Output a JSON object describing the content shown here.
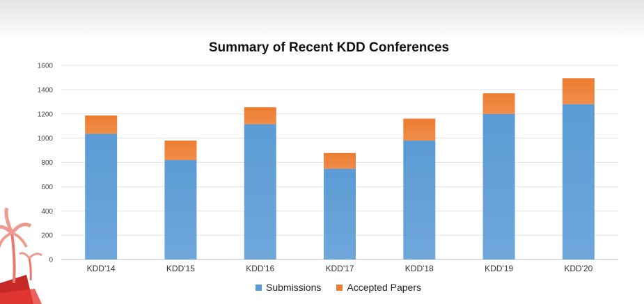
{
  "chart_data": {
    "type": "bar",
    "stacked": true,
    "title": "Summary of Recent KDD Conferences",
    "categories": [
      "KDD'14",
      "KDD'15",
      "KDD'16",
      "KDD'17",
      "KDD'18",
      "KDD'19",
      "KDD'20"
    ],
    "series": [
      {
        "name": "Submissions",
        "color": "#5b9bd5",
        "values": [
          1036,
          820,
          1115,
          748,
          980,
          1200,
          1280
        ]
      },
      {
        "name": "Accepted Papers",
        "color": "#ed7d31",
        "values": [
          151,
          160,
          140,
          130,
          181,
          170,
          215
        ]
      }
    ],
    "yticks": [
      0,
      200,
      400,
      600,
      800,
      1000,
      1200,
      1400,
      1600
    ],
    "ylim": [
      0,
      1600
    ],
    "grid": true,
    "legend_position": "bottom"
  }
}
